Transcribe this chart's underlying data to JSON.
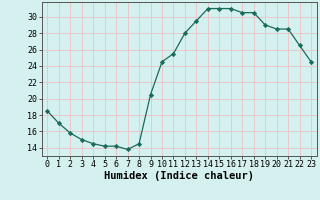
{
  "x": [
    0,
    1,
    2,
    3,
    4,
    5,
    6,
    7,
    8,
    9,
    10,
    11,
    12,
    13,
    14,
    15,
    16,
    17,
    18,
    19,
    20,
    21,
    22,
    23
  ],
  "y": [
    18.5,
    17.0,
    15.8,
    15.0,
    14.5,
    14.2,
    14.2,
    13.8,
    14.5,
    20.5,
    24.5,
    25.5,
    28.0,
    29.5,
    31.0,
    31.0,
    31.0,
    30.5,
    30.5,
    29.0,
    28.5,
    28.5,
    26.5,
    24.5
  ],
  "line_color": "#1a6b5a",
  "marker": "D",
  "marker_size": 2.2,
  "bg_color": "#d4f0ef",
  "grid_color": "#e8c8c8",
  "xlabel": "Humidex (Indice chaleur)",
  "xlim": [
    -0.5,
    23.5
  ],
  "ylim": [
    13,
    31.8
  ],
  "yticks": [
    14,
    16,
    18,
    20,
    22,
    24,
    26,
    28,
    30
  ],
  "xticks": [
    0,
    1,
    2,
    3,
    4,
    5,
    6,
    7,
    8,
    9,
    10,
    11,
    12,
    13,
    14,
    15,
    16,
    17,
    18,
    19,
    20,
    21,
    22,
    23
  ],
  "xtick_labels": [
    "0",
    "1",
    "2",
    "3",
    "4",
    "5",
    "6",
    "7",
    "8",
    "9",
    "10",
    "11",
    "12",
    "13",
    "14",
    "15",
    "16",
    "17",
    "18",
    "19",
    "20",
    "21",
    "22",
    "23"
  ],
  "xlabel_fontsize": 7.5,
  "tick_fontsize": 6.0
}
